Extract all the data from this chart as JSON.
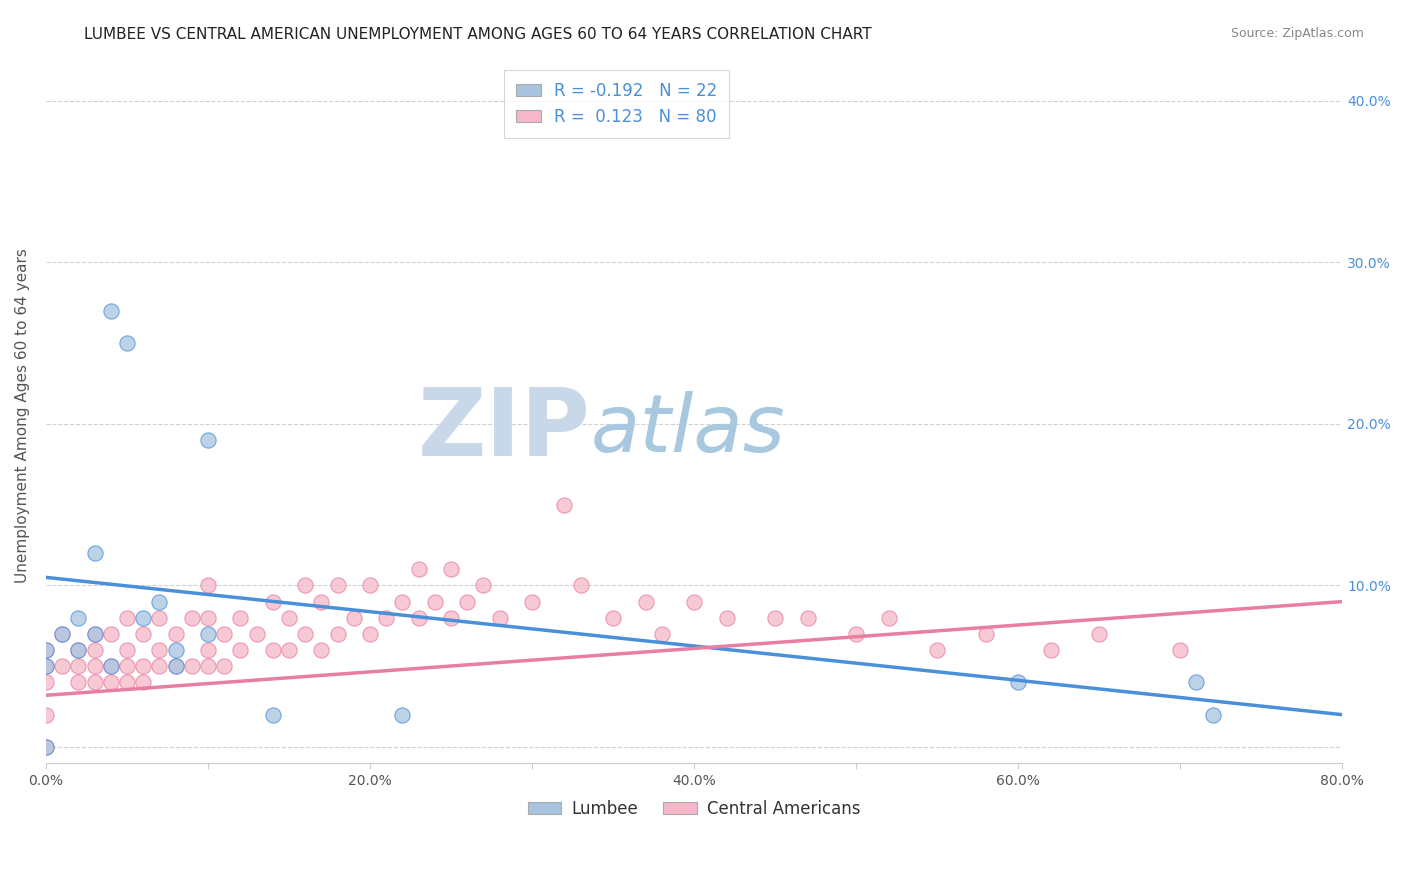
{
  "title": "LUMBEE VS CENTRAL AMERICAN UNEMPLOYMENT AMONG AGES 60 TO 64 YEARS CORRELATION CHART",
  "source": "Source: ZipAtlas.com",
  "ylabel": "Unemployment Among Ages 60 to 64 years",
  "xlim": [
    0.0,
    0.8
  ],
  "ylim": [
    -0.01,
    0.42
  ],
  "xticks": [
    0.0,
    0.1,
    0.2,
    0.3,
    0.4,
    0.5,
    0.6,
    0.7,
    0.8
  ],
  "yticks": [
    0.0,
    0.1,
    0.2,
    0.3,
    0.4
  ],
  "ytick_labels_right": [
    "",
    "10.0%",
    "20.0%",
    "30.0%",
    "40.0%"
  ],
  "xtick_labels": [
    "0.0%",
    "",
    "20.0%",
    "",
    "40.0%",
    "",
    "60.0%",
    "",
    "80.0%"
  ],
  "lumbee_color": "#a8c4e0",
  "central_color": "#f4b8c8",
  "lumbee_line_color": "#4a90d9",
  "central_line_color": "#e87fa0",
  "lumbee_R": -0.192,
  "lumbee_N": 22,
  "central_R": 0.123,
  "central_N": 80,
  "lumbee_line_y0": 0.105,
  "lumbee_line_y1": 0.02,
  "central_line_y0": 0.032,
  "central_line_y1": 0.09,
  "lumbee_scatter_x": [
    0.0,
    0.0,
    0.0,
    0.01,
    0.02,
    0.02,
    0.03,
    0.03,
    0.04,
    0.05,
    0.06,
    0.07,
    0.08,
    0.1,
    0.1,
    0.14,
    0.22,
    0.6,
    0.71,
    0.72,
    0.04,
    0.08
  ],
  "lumbee_scatter_y": [
    0.0,
    0.05,
    0.06,
    0.07,
    0.06,
    0.08,
    0.12,
    0.07,
    0.27,
    0.25,
    0.08,
    0.09,
    0.06,
    0.07,
    0.19,
    0.02,
    0.02,
    0.04,
    0.04,
    0.02,
    0.05,
    0.05
  ],
  "central_scatter_x": [
    0.0,
    0.0,
    0.0,
    0.0,
    0.0,
    0.01,
    0.01,
    0.02,
    0.02,
    0.02,
    0.03,
    0.03,
    0.03,
    0.03,
    0.04,
    0.04,
    0.04,
    0.05,
    0.05,
    0.05,
    0.05,
    0.06,
    0.06,
    0.06,
    0.07,
    0.07,
    0.07,
    0.08,
    0.08,
    0.09,
    0.09,
    0.1,
    0.1,
    0.1,
    0.1,
    0.11,
    0.11,
    0.12,
    0.12,
    0.13,
    0.14,
    0.14,
    0.15,
    0.15,
    0.16,
    0.16,
    0.17,
    0.17,
    0.18,
    0.18,
    0.19,
    0.2,
    0.2,
    0.21,
    0.22,
    0.23,
    0.23,
    0.24,
    0.25,
    0.25,
    0.26,
    0.27,
    0.28,
    0.3,
    0.32,
    0.33,
    0.35,
    0.37,
    0.38,
    0.4,
    0.42,
    0.45,
    0.47,
    0.5,
    0.52,
    0.55,
    0.58,
    0.62,
    0.65,
    0.7
  ],
  "central_scatter_y": [
    0.0,
    0.02,
    0.04,
    0.05,
    0.06,
    0.05,
    0.07,
    0.04,
    0.05,
    0.06,
    0.04,
    0.05,
    0.06,
    0.07,
    0.04,
    0.05,
    0.07,
    0.04,
    0.05,
    0.06,
    0.08,
    0.04,
    0.05,
    0.07,
    0.05,
    0.06,
    0.08,
    0.05,
    0.07,
    0.05,
    0.08,
    0.05,
    0.06,
    0.08,
    0.1,
    0.05,
    0.07,
    0.06,
    0.08,
    0.07,
    0.06,
    0.09,
    0.06,
    0.08,
    0.07,
    0.1,
    0.06,
    0.09,
    0.07,
    0.1,
    0.08,
    0.07,
    0.1,
    0.08,
    0.09,
    0.08,
    0.11,
    0.09,
    0.08,
    0.11,
    0.09,
    0.1,
    0.08,
    0.09,
    0.15,
    0.1,
    0.08,
    0.09,
    0.07,
    0.09,
    0.08,
    0.08,
    0.08,
    0.07,
    0.08,
    0.06,
    0.07,
    0.06,
    0.07,
    0.06
  ],
  "watermark_zip": "ZIP",
  "watermark_atlas": "atlas",
  "watermark_color_zip": "#c8d8e8",
  "watermark_color_atlas": "#a8c8e0",
  "background_color": "#ffffff",
  "legend_label_lumbee": "Lumbee",
  "legend_label_central": "Central Americans",
  "title_fontsize": 11,
  "axis_label_fontsize": 11,
  "tick_fontsize": 10,
  "legend_fontsize": 12
}
